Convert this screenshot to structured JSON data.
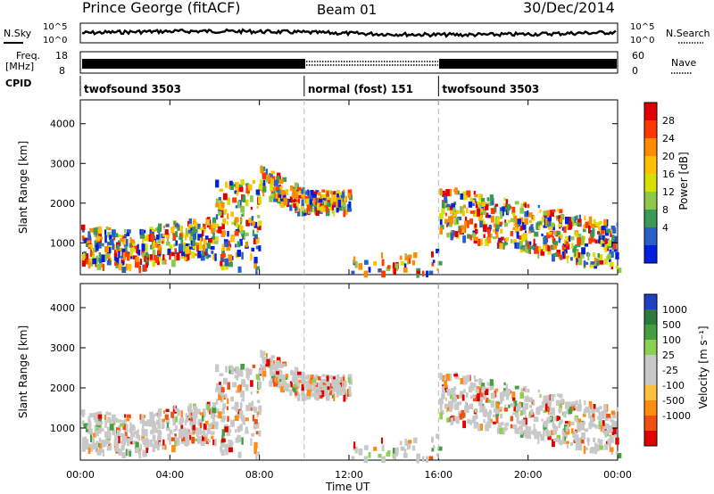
{
  "header": {
    "station": "Prince George (fitACF)",
    "beam": "Beam 01",
    "date": "30/Dec/2014"
  },
  "strips": {
    "nsky_label": "N.Sky",
    "nsearch_label": "N.Search",
    "freq_label_1": "Freq.",
    "freq_label_2": "[MHz]",
    "nave_label": "Nave",
    "cpid_label": "CPID",
    "noise_ticks_left": [
      "10^5",
      "10^0"
    ],
    "noise_ticks_right": [
      "10^5",
      "10^0"
    ],
    "freq_ticks": [
      "18",
      "8"
    ],
    "nave_ticks": [
      "60",
      "0"
    ]
  },
  "cpid_segments": [
    {
      "label": "twofsound 3503",
      "start_hour": 0,
      "end_hour": 10
    },
    {
      "label": "normal (fost) 151",
      "start_hour": 10,
      "end_hour": 16
    },
    {
      "label": "twofsound 3503",
      "start_hour": 16,
      "end_hour": 24
    }
  ],
  "chart_data": [
    {
      "type": "heatmap",
      "name": "power",
      "ylabel": "Slant Range [km]",
      "xlabel": "Time UT",
      "ylim": [
        200,
        4600
      ],
      "xlim": [
        0,
        24
      ],
      "y_ticks": [
        1000,
        2000,
        3000,
        4000
      ],
      "x_ticks": [
        "00:00",
        "04:00",
        "08:00",
        "12:00",
        "16:00",
        "20:00",
        "00:00"
      ],
      "colorbar": {
        "label": "Power [dB]",
        "ticks": [
          "28",
          "24",
          "20",
          "16",
          "12",
          "8",
          "4"
        ],
        "colors": [
          "#e00000",
          "#ff3a00",
          "#ff8c00",
          "#ffc000",
          "#d8e000",
          "#8cc84a",
          "#3c9a58",
          "#2860c8",
          "#0020e0"
        ]
      }
    },
    {
      "type": "heatmap",
      "name": "velocity",
      "ylabel": "Slant Range [km]",
      "xlabel": "Time UT",
      "ylim": [
        200,
        4600
      ],
      "xlim": [
        0,
        24
      ],
      "y_ticks": [
        1000,
        2000,
        3000,
        4000
      ],
      "x_ticks": [
        "00:00",
        "04:00",
        "08:00",
        "12:00",
        "16:00",
        "20:00",
        "00:00"
      ],
      "colorbar": {
        "label": "Velocity [m s⁻¹]",
        "ticks": [
          "1000",
          "500",
          "100",
          "25",
          "-25",
          "-100",
          "-500",
          "-1000"
        ],
        "colors": [
          "#2040c0",
          "#2e7a3c",
          "#44a03e",
          "#8cd050",
          "#c8c8c8",
          "#c8c8c8",
          "#ffc040",
          "#ff8c10",
          "#f05010",
          "#e00000"
        ]
      }
    }
  ],
  "time_axis_label": "Time UT"
}
